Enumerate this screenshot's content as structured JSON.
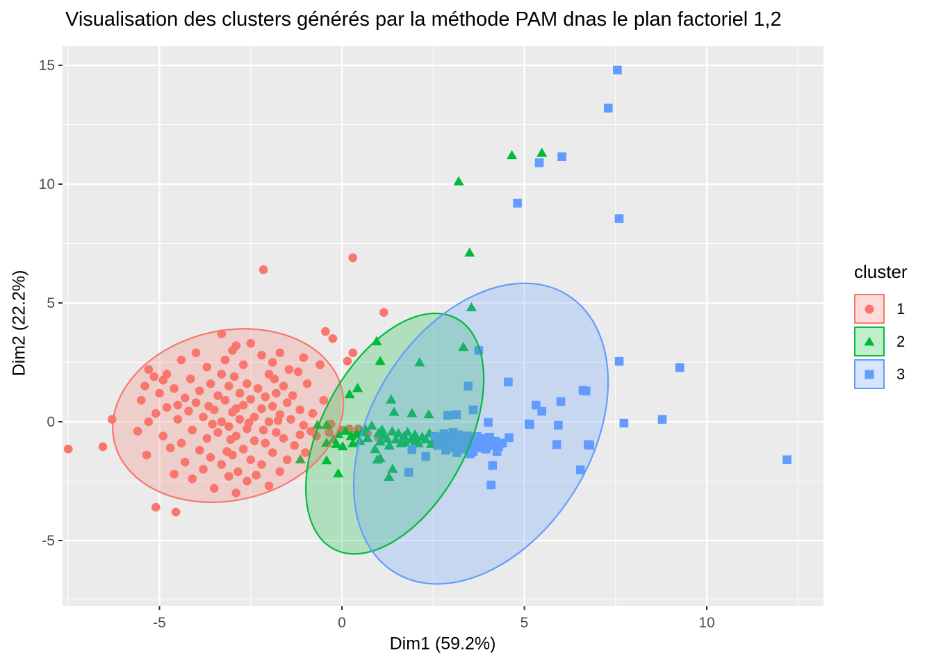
{
  "title": "Visualisation des clusters générés par la méthode PAM dnas le plan factoriel 1,2",
  "axes": {
    "x": {
      "label": "Dim1 (59.2%)",
      "ticks": [
        -5,
        0,
        5,
        10
      ],
      "minor_gridlines": [
        -7.5,
        -2.5,
        2.5,
        7.5,
        12.5
      ],
      "range": [
        -7.66,
        13.2
      ]
    },
    "y": {
      "label": "Dim2 (22.2%)",
      "ticks": [
        -5,
        0,
        5,
        10,
        15
      ],
      "minor_gridlines": [
        -7.5,
        -2.5,
        2.5,
        7.5,
        12.5
      ],
      "range": [
        -7.75,
        15.8
      ]
    }
  },
  "legend": {
    "title": "cluster",
    "position": "right",
    "items": [
      {
        "label": "1",
        "shape": "circle",
        "color": "#F8766D"
      },
      {
        "label": "2",
        "shape": "triangle",
        "color": "#00BA38"
      },
      {
        "label": "3",
        "shape": "square",
        "color": "#619CFF"
      }
    ]
  },
  "theme": {
    "panel_bg": "#EBEBEB",
    "grid_color": "#FFFFFF",
    "tick_label_color": "#4D4D4D",
    "tick_mark_color": "#333333",
    "text_color": "#000000",
    "ellipse_fill_opacity": 0.25
  },
  "chart_data": {
    "type": "scatter",
    "title": "Visualisation des clusters générés par la méthode PAM dnas le plan factoriel 1,2",
    "xlabel": "Dim1 (59.2%)",
    "ylabel": "Dim2 (22.2%)",
    "xlim": [
      -7.66,
      13.2
    ],
    "ylim": [
      -7.75,
      15.8
    ],
    "grid": true,
    "legend_position": "right",
    "series": [
      {
        "name": "1",
        "shape": "circle",
        "color": "#F8766D",
        "ellipse": {
          "cx": -3.12,
          "cy": 0.26,
          "a": 3.2,
          "b": 3.57,
          "rot": -13
        },
        "points": [
          [
            -7.5,
            -1.15
          ],
          [
            -6.55,
            -1.05
          ],
          [
            -6.3,
            0.1
          ],
          [
            -5.1,
            -3.6
          ],
          [
            -4.55,
            -3.8
          ],
          [
            -2.15,
            6.4
          ],
          [
            0.3,
            6.9
          ],
          [
            1.15,
            4.6
          ],
          [
            -0.45,
            3.8
          ],
          [
            -0.25,
            3.5
          ],
          [
            0.3,
            2.9
          ],
          [
            0.15,
            2.55
          ],
          [
            -1.05,
            2.7
          ],
          [
            -1.2,
            2.1
          ],
          [
            -3.3,
            3.7
          ],
          [
            -2.9,
            3.2
          ],
          [
            -2.5,
            3.3
          ],
          [
            -4.0,
            2.9
          ],
          [
            -3.0,
            3.0
          ],
          [
            -5.3,
            2.2
          ],
          [
            -5.15,
            1.9
          ],
          [
            -5.4,
            1.5
          ],
          [
            -4.8,
            2.0
          ],
          [
            -4.4,
            2.6
          ],
          [
            -4.15,
            1.8
          ],
          [
            -3.7,
            2.3
          ],
          [
            -3.3,
            2.0
          ],
          [
            -3.2,
            2.6
          ],
          [
            -2.95,
            1.9
          ],
          [
            -2.7,
            2.4
          ],
          [
            -2.2,
            2.8
          ],
          [
            -1.9,
            2.5
          ],
          [
            -1.7,
            2.9
          ],
          [
            -1.45,
            2.2
          ],
          [
            -2.0,
            2.0
          ],
          [
            -5.0,
            1.2
          ],
          [
            -4.6,
            1.4
          ],
          [
            -4.3,
            1.0
          ],
          [
            -3.9,
            1.3
          ],
          [
            -3.6,
            1.6
          ],
          [
            -3.4,
            1.1
          ],
          [
            -3.1,
            1.5
          ],
          [
            -2.8,
            1.2
          ],
          [
            -2.6,
            1.6
          ],
          [
            -2.3,
            1.4
          ],
          [
            -2.1,
            1.05
          ],
          [
            -1.85,
            1.8
          ],
          [
            -1.6,
            1.5
          ],
          [
            -1.35,
            1.1
          ],
          [
            -0.95,
            1.6
          ],
          [
            -1.8,
            1.2
          ],
          [
            -4.9,
            1.75
          ],
          [
            -5.5,
            0.9
          ],
          [
            -5.1,
            0.35
          ],
          [
            -4.8,
            0.6
          ],
          [
            -4.2,
            0.45
          ],
          [
            -4.0,
            0.8
          ],
          [
            -3.5,
            0.5
          ],
          [
            -3.2,
            0.9
          ],
          [
            -3.0,
            0.4
          ],
          [
            -2.7,
            0.7
          ],
          [
            -2.5,
            0.95
          ],
          [
            -2.2,
            0.55
          ],
          [
            -1.9,
            0.65
          ],
          [
            -1.7,
            0.3
          ],
          [
            -1.5,
            0.8
          ],
          [
            -0.8,
            0.35
          ],
          [
            -0.5,
            0.9
          ],
          [
            -4.5,
            0.7
          ],
          [
            -3.65,
            0.65
          ],
          [
            -2.9,
            0.55
          ],
          [
            -1.15,
            0.5
          ],
          [
            -5.3,
            0.0
          ],
          [
            -4.5,
            0.1
          ],
          [
            -3.8,
            0.2
          ],
          [
            -3.55,
            -0.1
          ],
          [
            -3.3,
            0.0
          ],
          [
            -3.1,
            -0.2
          ],
          [
            -2.8,
            0.1
          ],
          [
            -2.55,
            -0.05
          ],
          [
            -2.4,
            0.2
          ],
          [
            -2.0,
            0.0
          ],
          [
            -1.75,
            0.05
          ],
          [
            -1.4,
            0.1
          ],
          [
            -0.3,
            -0.1
          ],
          [
            -1.05,
            -0.15
          ],
          [
            -5.6,
            -0.4
          ],
          [
            -4.9,
            -0.6
          ],
          [
            -4.4,
            -0.9
          ],
          [
            -4.1,
            -0.35
          ],
          [
            -3.7,
            -0.7
          ],
          [
            -3.4,
            -0.45
          ],
          [
            -3.05,
            -0.75
          ],
          [
            -2.9,
            -0.6
          ],
          [
            -2.6,
            -0.3
          ],
          [
            -2.4,
            -0.8
          ],
          [
            -2.15,
            -0.35
          ],
          [
            -2.1,
            -0.9
          ],
          [
            -1.8,
            -0.45
          ],
          [
            -1.6,
            -0.7
          ],
          [
            -1.15,
            -0.55
          ],
          [
            -0.7,
            -0.6
          ],
          [
            -5.35,
            -1.4
          ],
          [
            -4.7,
            -1.1
          ],
          [
            -4.3,
            -1.7
          ],
          [
            -3.9,
            -1.2
          ],
          [
            -3.6,
            -1.5
          ],
          [
            -3.3,
            -1.8
          ],
          [
            -3.15,
            -1.25
          ],
          [
            -3.0,
            -1.4
          ],
          [
            -2.7,
            -1.15
          ],
          [
            -2.5,
            -1.6
          ],
          [
            -2.2,
            -1.8
          ],
          [
            -1.9,
            -1.3
          ],
          [
            -1.5,
            -1.6
          ],
          [
            -1.3,
            -1.0
          ],
          [
            -1.0,
            -1.3
          ],
          [
            -4.6,
            -2.2
          ],
          [
            -4.1,
            -2.4
          ],
          [
            -3.8,
            -2.0
          ],
          [
            -3.5,
            -2.8
          ],
          [
            -3.1,
            -2.3
          ],
          [
            -2.85,
            -2.1
          ],
          [
            -2.6,
            -2.5
          ],
          [
            -2.0,
            -2.7
          ],
          [
            -1.7,
            -2.1
          ],
          [
            -2.35,
            -2.25
          ],
          [
            -2.9,
            -3.0
          ],
          [
            0.2,
            -0.3
          ],
          [
            0.35,
            -0.55
          ],
          [
            0.7,
            -0.5
          ],
          [
            1.0,
            -0.67
          ],
          [
            -0.85,
            -0.4
          ],
          [
            0.0,
            -0.35
          ],
          [
            0.45,
            -0.3
          ],
          [
            -0.6,
            2.4
          ],
          [
            -0.35,
            -0.45
          ]
        ]
      },
      {
        "name": "2",
        "shape": "triangle",
        "color": "#00BA38",
        "ellipse": {
          "cx": 1.45,
          "cy": -0.5,
          "a": 3.58,
          "b": 3.07,
          "rot": -62
        },
        "points": [
          [
            -0.67,
            -0.15
          ],
          [
            -0.42,
            -0.15
          ],
          [
            -0.42,
            -0.9
          ],
          [
            -0.23,
            -0.76
          ],
          [
            -0.1,
            -0.53
          ],
          [
            0.02,
            -1.05
          ],
          [
            0.1,
            -0.4
          ],
          [
            0.25,
            -0.62
          ],
          [
            0.3,
            -0.92
          ],
          [
            0.49,
            -0.82
          ],
          [
            0.55,
            -0.45
          ],
          [
            0.7,
            -0.7
          ],
          [
            0.82,
            -0.18
          ],
          [
            0.91,
            -1.17
          ],
          [
            1.0,
            -0.5
          ],
          [
            1.05,
            -0.85
          ],
          [
            1.1,
            -0.35
          ],
          [
            1.24,
            -0.73
          ],
          [
            1.3,
            -1.02
          ],
          [
            1.48,
            -0.76
          ],
          [
            1.55,
            -0.5
          ],
          [
            1.62,
            -0.92
          ],
          [
            1.7,
            -0.62
          ],
          [
            1.73,
            -0.88
          ],
          [
            1.8,
            -0.45
          ],
          [
            1.9,
            -0.75
          ],
          [
            2.0,
            -0.55
          ],
          [
            2.02,
            -0.82
          ],
          [
            2.1,
            -0.92
          ],
          [
            2.2,
            -0.65
          ],
          [
            2.3,
            -0.76
          ],
          [
            2.4,
            -0.5
          ],
          [
            2.5,
            -0.8
          ],
          [
            2.6,
            -0.62
          ],
          [
            2.7,
            -0.9
          ],
          [
            2.75,
            -0.55
          ],
          [
            0.63,
            -0.3
          ],
          [
            1.15,
            -0.6
          ],
          [
            1.38,
            -0.42
          ],
          [
            2.45,
            -0.95
          ],
          [
            0.4,
            -0.52
          ],
          [
            -0.15,
            -0.95
          ],
          [
            0.97,
            -1.61
          ],
          [
            1.05,
            -1.55
          ],
          [
            1.39,
            -2.0
          ],
          [
            1.29,
            -2.34
          ],
          [
            -1.14,
            -1.6
          ],
          [
            -0.42,
            -1.64
          ],
          [
            -0.1,
            -2.19
          ],
          [
            1.35,
            0.92
          ],
          [
            1.43,
            0.4
          ],
          [
            1.92,
            0.35
          ],
          [
            2.38,
            0.3
          ],
          [
            0.43,
            1.4
          ],
          [
            0.21,
            1.14
          ],
          [
            2.13,
            2.48
          ],
          [
            1.05,
            2.54
          ],
          [
            0.95,
            3.37
          ],
          [
            3.33,
            3.13
          ],
          [
            3.55,
            4.8
          ],
          [
            3.5,
            7.1
          ],
          [
            3.2,
            10.1
          ],
          [
            4.66,
            11.2
          ],
          [
            5.48,
            11.3
          ]
        ]
      },
      {
        "name": "3",
        "shape": "square",
        "color": "#619CFF",
        "ellipse": {
          "cx": 3.81,
          "cy": -0.5,
          "a": 4.48,
          "b": 4.62,
          "rot": -58
        },
        "points": [
          [
            2.3,
            -1.46
          ],
          [
            1.92,
            -1.17
          ],
          [
            2.55,
            -0.62
          ],
          [
            2.62,
            -1.0
          ],
          [
            2.7,
            -0.78
          ],
          [
            2.8,
            -0.5
          ],
          [
            2.85,
            -1.2
          ],
          [
            2.9,
            -0.85
          ],
          [
            3.0,
            -0.62
          ],
          [
            3.0,
            -1.1
          ],
          [
            3.1,
            -0.8
          ],
          [
            3.15,
            -1.3
          ],
          [
            3.2,
            -0.55
          ],
          [
            3.25,
            -0.95
          ],
          [
            3.3,
            -0.7
          ],
          [
            3.35,
            -1.15
          ],
          [
            3.4,
            -0.85
          ],
          [
            3.45,
            -0.6
          ],
          [
            3.5,
            -1.0
          ],
          [
            3.55,
            -0.78
          ],
          [
            3.6,
            -1.25
          ],
          [
            3.65,
            -0.9
          ],
          [
            3.7,
            -0.62
          ],
          [
            3.75,
            -1.1
          ],
          [
            3.8,
            -0.8
          ],
          [
            3.85,
            -0.95
          ],
          [
            3.9,
            -0.7
          ],
          [
            3.95,
            -1.15
          ],
          [
            4.0,
            -0.9
          ],
          [
            4.05,
            -0.65
          ],
          [
            4.1,
            -1.0
          ],
          [
            4.2,
            -0.82
          ],
          [
            4.3,
            -1.05
          ],
          [
            4.4,
            -0.9
          ],
          [
            4.58,
            -0.67
          ],
          [
            3.05,
            -0.45
          ],
          [
            3.52,
            -1.35
          ],
          [
            4.25,
            -1.25
          ],
          [
            4.01,
            -0.03
          ],
          [
            4.13,
            -1.84
          ],
          [
            4.09,
            -2.66
          ],
          [
            1.83,
            -2.13
          ],
          [
            5.15,
            -0.12
          ],
          [
            5.93,
            -0.15
          ],
          [
            5.89,
            -0.96
          ],
          [
            6.75,
            -0.96
          ],
          [
            6.54,
            -2.02
          ],
          [
            5.32,
            0.7
          ],
          [
            5.48,
            0.44
          ],
          [
            5.13,
            -0.09
          ],
          [
            6.61,
            1.32
          ],
          [
            6.79,
            -0.99
          ],
          [
            7.73,
            -0.06
          ],
          [
            8.78,
            0.1
          ],
          [
            12.2,
            -1.6
          ],
          [
            7.6,
            2.54
          ],
          [
            9.26,
            2.28
          ],
          [
            6.69,
            1.29
          ],
          [
            2.9,
            0.27
          ],
          [
            3.14,
            0.3
          ],
          [
            3.6,
            0.5
          ],
          [
            3.46,
            1.5
          ],
          [
            3.75,
            3.0
          ],
          [
            4.56,
            1.67
          ],
          [
            6.0,
            0.85
          ],
          [
            4.81,
            9.2
          ],
          [
            5.41,
            10.9
          ],
          [
            6.03,
            11.15
          ],
          [
            7.3,
            13.2
          ],
          [
            7.55,
            14.8
          ],
          [
            7.6,
            8.55
          ]
        ]
      }
    ]
  }
}
